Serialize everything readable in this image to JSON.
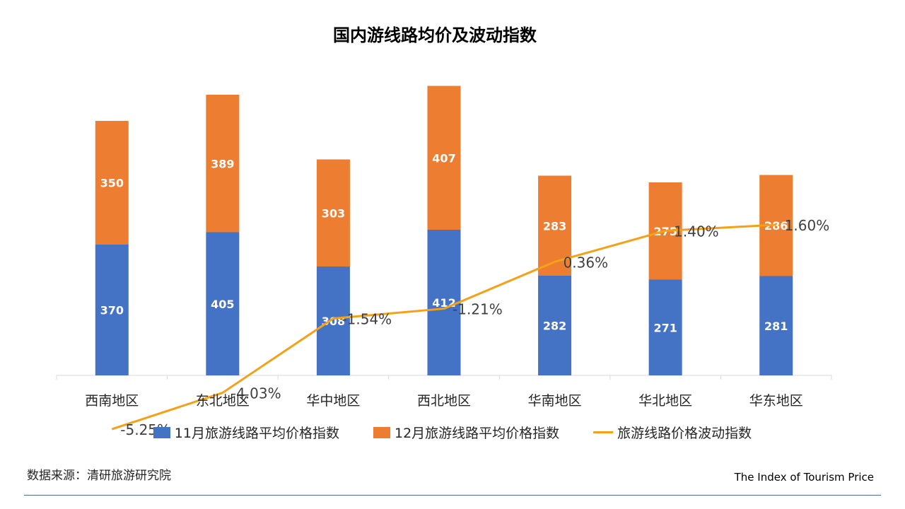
{
  "chart_data": {
    "type": "bar",
    "stacked": true,
    "title": "国内游线路均价及波动指数",
    "categories": [
      "西南地区",
      "东北地区",
      "华中地区",
      "西北地区",
      "华南地区",
      "华北地区",
      "华东地区"
    ],
    "series": [
      {
        "name": "11月旅游线路平均价格指数",
        "type": "bar",
        "color": "#4472C4",
        "values": [
          370,
          405,
          308,
          412,
          282,
          271,
          281
        ]
      },
      {
        "name": "12月旅游线路平均价格指数",
        "type": "bar",
        "color": "#ED7D31",
        "values": [
          350,
          389,
          303,
          407,
          283,
          275,
          286
        ]
      },
      {
        "name": "旅游线路价格波动指数",
        "type": "line",
        "color": "#F4A11A",
        "values": [
          -5.25,
          -4.03,
          -1.54,
          -1.21,
          0.36,
          1.4,
          1.6
        ],
        "labels": [
          "-5.25%",
          "-4.03%",
          "-1.54%",
          "-1.21%",
          "0.36%",
          "1.40%",
          "1.60%"
        ]
      }
    ],
    "legend_position": "bottom",
    "grid": false
  },
  "source_note": "数据来源：清研旅游研究院",
  "footer_brand": "The Index of Tourism Price"
}
